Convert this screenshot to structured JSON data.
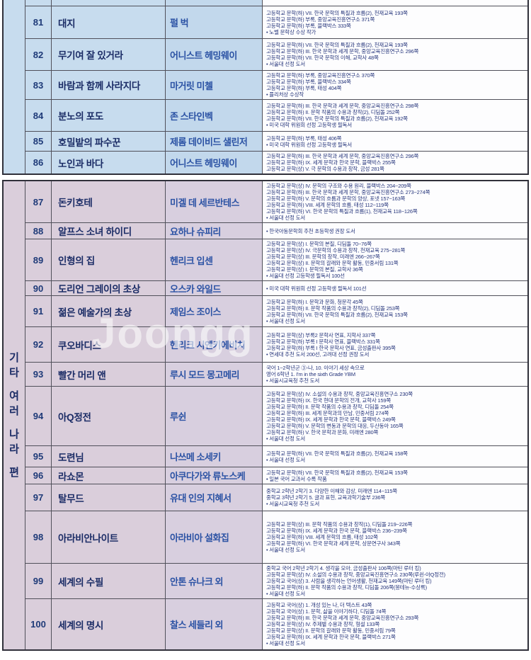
{
  "watermark": "Joongg",
  "blocks": [
    {
      "key": "blue",
      "section_label": "",
      "rows": [
        {
          "num": "81",
          "title": "대지",
          "author": "펄 벅",
          "notes": [
            "고등학교 문학(하) VII. 한국 문학의 특질과 흐름(2), 천재교육 193쪽",
            "고등학교 문학(하) 부록, 중앙교육진흥연구소 371쪽",
            "고등학교 문학(하) 부록, 블랙박스 333쪽",
            "• 노벨 문학상 수상 작가"
          ]
        },
        {
          "num": "82",
          "title": "무기여 잘 있거라",
          "author": "어니스트 헤밍웨이",
          "notes": [
            "고등학교 문학(하) VII. 한국 문학의 특질과 흐름(2), 천재교육 193쪽",
            "고등학교 문학(하) III. 한국 문학과 세계 문학, 중앙교육진흥연구소 296쪽",
            "고등학교 문학(하) VII. 한국 문학의 이해, 교학사 48쪽",
            "• 서울대 선정 도서"
          ]
        },
        {
          "num": "83",
          "title": "바람과 함께 사라지다",
          "author": "마거릿 미첼",
          "notes": [
            "고등학교 문학(하) 부록, 중앙교육진흥연구소 370쪽",
            "고등학교 문학(하) 부록, 블랙박스 334쪽",
            "고등학교 문학(하) 부록, 태성 404쪽",
            "• 퓰리처상 수상작"
          ]
        },
        {
          "num": "84",
          "title": "분노의 포도",
          "author": "존 스타인벡",
          "notes": [
            "고등학교 문학(하) III. 한국 문학과 세계 문학, 중앙교육진흥연구소 298쪽",
            "고등학교 문학(하) II. 문학 작품의 수용과 창작(2), 디딤돌 252쪽",
            "고등학교 문학(하) VII. 한국 문학의 특질과 흐름(2), 천재교육 192쪽",
            "• 미국 대학 위원회 선정 고등학생 필독서"
          ]
        },
        {
          "num": "85",
          "title": "호밀밭의 파수꾼",
          "author": "제롬 데이비드 샐린저",
          "notes": [
            "고등학교 문학(하) 부록, 태성 406쪽",
            "• 미국 대학 위원회 선정 고등학생 필독서"
          ]
        },
        {
          "num": "86",
          "title": "노인과 바다",
          "author": "어니스트 헤밍웨이",
          "notes": [
            "고등학교 문학(하) III. 한국 문학과 세계 문학, 중앙교육진흥연구소 296쪽",
            "고등학교 문학(하) IX. 세계 문학과 한국 문학, 블랙박스 255쪽",
            "고등학교 문학(상) V. 극 문학의 수용과 창작, 금성 281쪽"
          ]
        }
      ]
    },
    {
      "key": "pink",
      "section_label": "기타 여러 나라 편",
      "rows": [
        {
          "num": "87",
          "title": "돈키호테",
          "author": "미겔 데 세르반테스",
          "notes": [
            "고등학교 문학(상) IV. 문학의 구조와 수용 원리, 블랙박스 204~209쪽",
            "고등학교 문학(하) III. 한국 문학과 세계 문학, 중앙교육진흥연구소 273~274쪽",
            "고등학교 문학(하) V. 문학의 흐름과 문학의 양상, 포넷 157~163쪽",
            "고등학교 문학(하) VIII. 세계 문학의 흐름, 태성 112~119쪽",
            "고등학교 문학(하) VI. 한국 문학의 특질과 흐름(1), 천재교육 118~126쪽",
            "• 서울대 선정 도서"
          ]
        },
        {
          "num": "88",
          "title": "알프스 소녀 하이디",
          "author": "요하나 슈피리",
          "notes": [
            "• 한국아동문학회 추천 초등학생 권장 도서"
          ]
        },
        {
          "num": "89",
          "title": "인형의 집",
          "author": "헨리크 입센",
          "notes": [
            "고등학교 문학(상) I. 문학의 본질, 디딤돌 70~76쪽",
            "고등학교 문학(상) IV. 극문학의 수용과 창작, 천재교육 275~281쪽",
            "고등학교 문학(상) III. 문학의 창작, 미래엔 266~267쪽",
            "고등학교 문학(상) II. 문학의 갈래와 문학 활동, 민중서림 131쪽",
            "고등학교 문학(상) I. 문학의 본질, 교학사 36쪽",
            "• 서울대 선정 고등학생 필독서 100선"
          ]
        },
        {
          "num": "90",
          "title": "도리언 그레이의 초상",
          "author": "오스카 와일드",
          "notes": [
            "• 미국 대학 위원회 선정 고등학생 필독서 101선"
          ]
        },
        {
          "num": "91",
          "title": "젊은 예술가의 초상",
          "author": "제임스 조이스",
          "notes": [
            "고등학교 문학(하) I. 문학과 문화, 청문각 45쪽",
            "고등학교 문학(하) II. 문학 작품의 수용과 창작(2), 디딤돌 253쪽",
            "고등학교 문학(하) VII. 한국 문학의 특질과 흐름(2), 천재교육 153쪽",
            "• 서울대 선정 도서"
          ]
        },
        {
          "num": "92",
          "title": "쿠오바디스",
          "author": "헨리크 시엔키에비치",
          "notes": [
            "고등학교 문학(상) 부록2 문학사 연표, 지학사 337쪽",
            "고등학교 문학(하) 부록 I 문학사 연표, 블랙박스 331쪽",
            "고등학교 문학(하) 부록 I 한국 문학사 연표, 금성출판사 395쪽",
            "• 연세대 추천 도서 200선, 고려대 선정 권장 도서"
          ]
        },
        {
          "num": "93",
          "title": "빨간 머리 앤",
          "author": "루시 모드 몽고메리",
          "notes": [
            "국어 1~2학년군 ③-나, 10. 이야기 세상 속으로",
            "영어 6학년 1. I'm in the sixth Grade YBM",
            "• 서울시교육청 추천 도서"
          ]
        },
        {
          "num": "94",
          "title": "아Q정전",
          "author": "루쉰",
          "notes": [
            "고등학교 문학(상) IV. 소설의 수용과 창작, 중앙교육진흥연구소 230쪽",
            "고등학교 문학(하) IX. 한국 현대 문학의 전개, 교학사 159쪽",
            "고등학교 문학(하) II. 문학 작품의 수용과 창작, 디딤돌 254쪽",
            "고등학교 문학(하) III. 세계 문학과의 만남, 민중서림 274쪽",
            "고등학교 문학(하) IX. 세계 문학과 한국 문학, 블랙박스 249쪽",
            "고등학교 문학(하) V. 문학의 변동과 문학의 대응, 두산동아 165쪽",
            "고등학교 문학(하) V. 한국 문학과 문화, 미래엔 280쪽",
            "• 서울대 선정 도서"
          ]
        },
        {
          "num": "95",
          "title": "도련님",
          "author": "나쓰메 소세키",
          "notes": [
            "고등학교 문학(하) VII. 한국 문학의 특질과 흐름(2), 천재교육 158쪽",
            "• 서울대 선정 도서"
          ]
        },
        {
          "num": "96",
          "title": "라쇼몬",
          "author": "아쿠다가와 류노스케",
          "notes": [
            "고등학교 문학(하) VII. 한국 문학의 특질과 흐름(2), 천재교육 153쪽",
            "• 일본 국어 교과서 수록 작품"
          ]
        },
        {
          "num": "97",
          "title": "탈무드",
          "author": "유대 인의 지혜서",
          "notes": [
            "중학교 2학년 2학기 3. 다양한 이해와 감상, 미래엔 114~115쪽",
            "중학교 3학년 2학기 5. 글과 표현, 교육과학기술부 236쪽",
            "• 서울시교육청 추천 도서"
          ]
        },
        {
          "num": "98",
          "title": "아라비안나이트",
          "author": "아라비아 설화집",
          "notes": [
            "고등학교 문학(상) III. 문학 작품의 수용과 창작(1), 디딤돌 219~226쪽",
            "고등학교 문학(하) IX. 세계 문학과 한국 문학, 블랙박스 236~239쪽",
            "고등학교 문학(하) VIII. 세계 문학의 흐름, 태성 102쪽",
            "고등학교 문학(하) VI. 한국 문학과 세계 문학, 상문연구사 343쪽",
            "• 서울대 선정 도서"
          ]
        },
        {
          "num": "99",
          "title": "세계의 수필",
          "author": "안톤 슈나크 외",
          "notes": [
            "중학교 국어 2학년 2학기 4. 생각을 모아, 금성출판사 106쪽(마틴 루터 킹)",
            "고등학교 문학(상) IV. 소설의 수용과 창작, 중앙교육진흥연구소 230쪽(루쉰-아Q정전)",
            "고등학교 국어(상) 3. 사람을 생각하는 언어생활, 천재교육 149쪽(마틴 루터 킹)",
            "고등학교 문학(하) II. 문학 작품의 수용과 창작, 디딤돌 206쪽(몽테뉴-수상록)",
            "• 서울대 선정 도서"
          ]
        },
        {
          "num": "100",
          "title": "세계의 명시",
          "author": "찰스 세들리 외",
          "notes": [
            "고등학교 국어(상) 1. 개성 있는 나, 더 텍스트 43쪽",
            "고등학교 국어(상) 1. 문학, 삶을 이야기하다, 디딤돌 74쪽",
            "고등학교 문학(하) III. 한국 문학과 세계 문학, 중앙교육진흥연구소 293쪽",
            "고등학교 문학(상) IV. 주제별 수용과 창작, 형설 133쪽",
            "고등학교 문학(상) II. 문학의 갈래와 문학 활동, 민중서림 79쪽",
            "고등학교 문학(하) IX. 세계 문학과 한국 문학, 블랙박스 271쪽",
            "• 서울대 선정 도서"
          ]
        }
      ]
    }
  ]
}
